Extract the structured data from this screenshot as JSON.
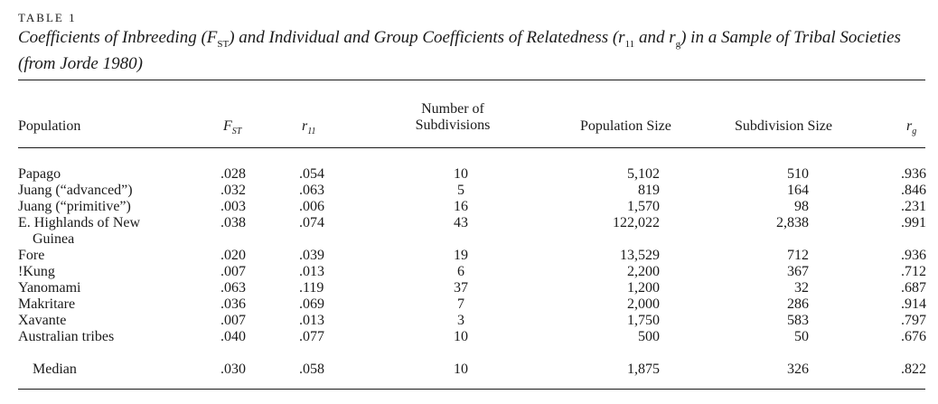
{
  "table_label": "TABLE 1",
  "caption": {
    "part1": "Coefficients of Inbreeding (F",
    "fst_sub": "ST",
    "part2": ") and Individual and Group Coefficients of Relatedness (r",
    "r11_sub": "11",
    "part3": " and r",
    "rg_sub": "g",
    "part4": ") in a Sample of Tribal Societies (from Jorde 1980)"
  },
  "headers": {
    "population": "Population",
    "fst_main": "F",
    "fst_sub": "ST",
    "r11_main": "r",
    "r11_sub": "11",
    "subdivisions_line1": "Number of",
    "subdivisions_line2": "Subdivisions",
    "population_size": "Population Size",
    "subdivision_size": "Subdivision Size",
    "rg_main": "r",
    "rg_sub": "g"
  },
  "rows": [
    {
      "population": "Papago",
      "fst": ".028",
      "r11": ".054",
      "subdivisions": "10",
      "population_size": "5,102",
      "subdivision_size": "510",
      "rg": ".936"
    },
    {
      "population": "Juang (“advanced”)",
      "fst": ".032",
      "r11": ".063",
      "subdivisions": "5",
      "population_size": "819",
      "subdivision_size": "164",
      "rg": ".846"
    },
    {
      "population": "Juang (“primitive”)",
      "fst": ".003",
      "r11": ".006",
      "subdivisions": "16",
      "population_size": "1,570",
      "subdivision_size": "98",
      "rg": ".231"
    },
    {
      "population": "E. Highlands of New",
      "population_cont": "Guinea",
      "fst": ".038",
      "r11": ".074",
      "subdivisions": "43",
      "population_size": "122,022",
      "subdivision_size": "2,838",
      "rg": ".991"
    },
    {
      "population": "Fore",
      "fst": ".020",
      "r11": ".039",
      "subdivisions": "19",
      "population_size": "13,529",
      "subdivision_size": "712",
      "rg": ".936"
    },
    {
      "population": "!Kung",
      "fst": ".007",
      "r11": ".013",
      "subdivisions": "6",
      "population_size": "2,200",
      "subdivision_size": "367",
      "rg": ".712"
    },
    {
      "population": "Yanomami",
      "fst": ".063",
      "r11": ".119",
      "subdivisions": "37",
      "population_size": "1,200",
      "subdivision_size": "32",
      "rg": ".687"
    },
    {
      "population": "Makritare",
      "fst": ".036",
      "r11": ".069",
      "subdivisions": "7",
      "population_size": "2,000",
      "subdivision_size": "286",
      "rg": ".914"
    },
    {
      "population": "Xavante",
      "fst": ".007",
      "r11": ".013",
      "subdivisions": "3",
      "population_size": "1,750",
      "subdivision_size": "583",
      "rg": ".797"
    },
    {
      "population": "Australian tribes",
      "fst": ".040",
      "r11": ".077",
      "subdivisions": "10",
      "population_size": "500",
      "subdivision_size": "50",
      "rg": ".676"
    }
  ],
  "median": {
    "population": "Median",
    "fst": ".030",
    "r11": ".058",
    "subdivisions": "10",
    "population_size": "1,875",
    "subdivision_size": "326",
    "rg": ".822"
  }
}
